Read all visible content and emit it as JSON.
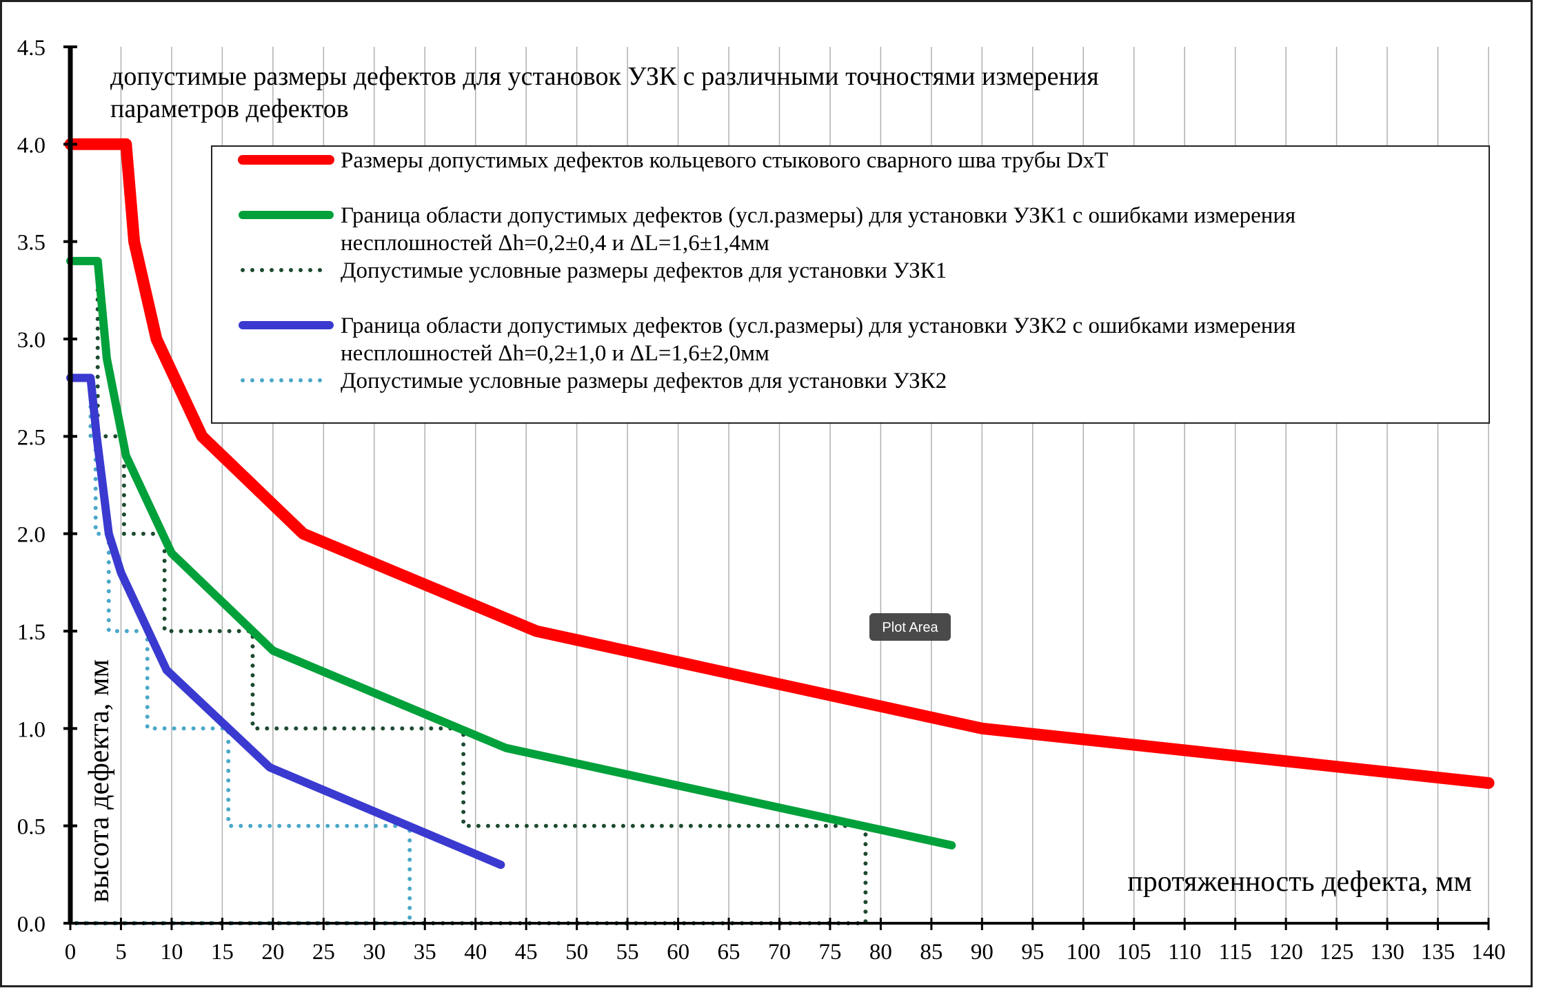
{
  "chart_data": {
    "type": "line",
    "title": "допустимые размеры дефектов для установок УЗК с различными точностями измерения параметров дефектов",
    "title_lines": [
      "допустимые размеры дефектов для установок УЗК с различными точностями измерения",
      "параметров дефектов"
    ],
    "xlabel": "протяженность дефекта, мм",
    "ylabel": "высота дефекта, мм",
    "xlim": [
      0,
      140
    ],
    "ylim": [
      0,
      4.5
    ],
    "xticks": [
      "0",
      "5",
      "10",
      "15",
      "20",
      "25",
      "30",
      "35",
      "40",
      "45",
      "50",
      "55",
      "60",
      "65",
      "70",
      "75",
      "80",
      "85",
      "90",
      "95",
      "100",
      "105",
      "110",
      "115",
      "120",
      "125",
      "130",
      "135",
      "140"
    ],
    "yticks": [
      "0.0",
      "0.5",
      "1.0",
      "1.5",
      "2.0",
      "2.5",
      "3.0",
      "3.5",
      "4.0",
      "4.5"
    ],
    "grid": "vertical",
    "legend_position": "top-right",
    "series": [
      {
        "name": "Размеры допустимых дефектов кольцевого стыкового сварного шва трубы DxT",
        "style": "solid",
        "color": "#ff0000",
        "points": [
          [
            0,
            4.0
          ],
          [
            5.5,
            4.0
          ],
          [
            6.3,
            3.5
          ],
          [
            8.5,
            3.0
          ],
          [
            13,
            2.5
          ],
          [
            23,
            2.0
          ],
          [
            46,
            1.5
          ],
          [
            90,
            1.0
          ],
          [
            140,
            0.72
          ]
        ]
      },
      {
        "name": "Граница области допустимых дефектов (усл.размеры) для установки УЗК1 с ошибками измерения несплошностей Δh=0,2±0,4 и ΔL=1,6±1,4мм",
        "style": "solid",
        "color": "#00a03a",
        "points": [
          [
            0,
            3.4
          ],
          [
            2.7,
            3.4
          ],
          [
            3.6,
            2.9
          ],
          [
            5.5,
            2.4
          ],
          [
            10,
            1.9
          ],
          [
            20,
            1.4
          ],
          [
            43,
            0.9
          ],
          [
            87,
            0.4
          ]
        ]
      },
      {
        "name": "Допустимые условные размеры дефектов для установки УЗК1",
        "style": "dotted",
        "color": "#1d4a30",
        "points": [
          [
            2.7,
            3.4
          ],
          [
            2.7,
            2.5
          ],
          [
            5.3,
            2.5
          ],
          [
            5.3,
            2.0
          ],
          [
            9.3,
            2.0
          ],
          [
            9.3,
            1.5
          ],
          [
            18,
            1.5
          ],
          [
            18,
            1.0
          ],
          [
            38.8,
            1.0
          ],
          [
            38.8,
            0.5
          ],
          [
            78.5,
            0.5
          ],
          [
            78.5,
            0.0
          ],
          [
            0,
            0.0
          ]
        ]
      },
      {
        "name": "Граница области допустимых дефектов (усл.размеры) для установки УЗК2 с ошибками измерения несплошностей Δh=0,2±1,0 и ΔL=1,6±2,0мм",
        "style": "solid",
        "color": "#3a3ad0",
        "points": [
          [
            0,
            2.8
          ],
          [
            2,
            2.8
          ],
          [
            2.6,
            2.5
          ],
          [
            3.8,
            2.0
          ],
          [
            5,
            1.8
          ],
          [
            9.5,
            1.3
          ],
          [
            19.7,
            0.8
          ],
          [
            42.5,
            0.3
          ]
        ]
      },
      {
        "name": "Допустимые условные размеры дефектов для установки УЗК2",
        "style": "dotted",
        "color": "#4aa8c8",
        "points": [
          [
            2.0,
            2.8
          ],
          [
            2.0,
            2.5
          ],
          [
            2.5,
            2.5
          ],
          [
            2.5,
            2.0
          ],
          [
            3.8,
            2.0
          ],
          [
            3.8,
            1.5
          ],
          [
            7.6,
            1.5
          ],
          [
            7.6,
            1.0
          ],
          [
            15.6,
            1.0
          ],
          [
            15.6,
            0.5
          ],
          [
            33.5,
            0.5
          ],
          [
            33.5,
            0.0
          ],
          [
            0,
            0.0
          ]
        ]
      }
    ],
    "legend": {
      "entries": [
        {
          "lines": [
            "Размеры допустимых дефектов кольцевого стыкового сварного шва трубы DxT"
          ]
        },
        {
          "lines": [
            "Граница области допустимых дефектов (усл.размеры) для установки УЗК1 с ошибками измерения",
            "несплошностей Δh=0,2±0,4 и ΔL=1,6±1,4мм"
          ]
        },
        {
          "lines": [
            "Допустимые условные размеры дефектов для установки УЗК1"
          ]
        },
        {
          "lines": [
            "Граница области допустимых дефектов (усл.размеры) для установки УЗК2 с ошибками измерения",
            "несплошностей Δh=0,2±1,0 и ΔL=1,6±2,0мм"
          ]
        },
        {
          "lines": [
            "Допустимые условные размеры дефектов для установки УЗК2"
          ]
        }
      ]
    }
  },
  "tooltip": {
    "label": "Plot Area"
  }
}
